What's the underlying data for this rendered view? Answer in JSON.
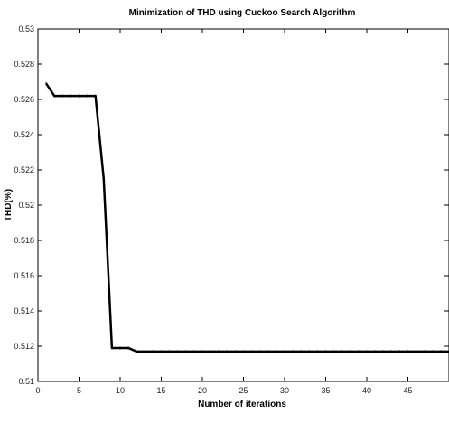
{
  "chart_data": {
    "type": "line",
    "title": "Minimization of THD using Cuckoo Search Algorithm",
    "xlabel": "Number of iterations",
    "ylabel": "THD(%)",
    "xlim": [
      0,
      50
    ],
    "ylim": [
      0.51,
      0.53
    ],
    "xticks": [
      0,
      5,
      10,
      15,
      20,
      25,
      30,
      35,
      40,
      45
    ],
    "xtick_labels": [
      "0",
      "5",
      "10",
      "15",
      "20",
      "25",
      "30",
      "35",
      "40",
      "45"
    ],
    "yticks": [
      0.51,
      0.512,
      0.514,
      0.516,
      0.518,
      0.52,
      0.522,
      0.524,
      0.526,
      0.528,
      0.53
    ],
    "ytick_labels": [
      "0.51",
      "0.512",
      "0.514",
      "0.516",
      "0.518",
      "0.52",
      "0.522",
      "0.524",
      "0.526",
      "0.528",
      "0.53"
    ],
    "grid": false,
    "line_color": "#000000",
    "series": [
      {
        "x": [
          1,
          2,
          3,
          4,
          5,
          6,
          7,
          8,
          9,
          10,
          11,
          12,
          13,
          14,
          15,
          16,
          17,
          18,
          19,
          20,
          21,
          22,
          23,
          24,
          25,
          26,
          27,
          28,
          29,
          30,
          31,
          32,
          33,
          34,
          35,
          36,
          37,
          38,
          39,
          40,
          41,
          42,
          43,
          44,
          45,
          46,
          47,
          48,
          49,
          50
        ],
        "values": [
          0.5269,
          0.5262,
          0.5262,
          0.5262,
          0.5262,
          0.5262,
          0.5262,
          0.5215,
          0.5119,
          0.5119,
          0.5119,
          0.5117,
          0.5117,
          0.5117,
          0.5117,
          0.5117,
          0.5117,
          0.5117,
          0.5117,
          0.5117,
          0.5117,
          0.5117,
          0.5117,
          0.5117,
          0.5117,
          0.5117,
          0.5117,
          0.5117,
          0.5117,
          0.5117,
          0.5117,
          0.5117,
          0.5117,
          0.5117,
          0.5117,
          0.5117,
          0.5117,
          0.5117,
          0.5117,
          0.5117,
          0.5117,
          0.5117,
          0.5117,
          0.5117,
          0.5117,
          0.5117,
          0.5117,
          0.5117,
          0.5117,
          0.5117
        ]
      }
    ]
  }
}
